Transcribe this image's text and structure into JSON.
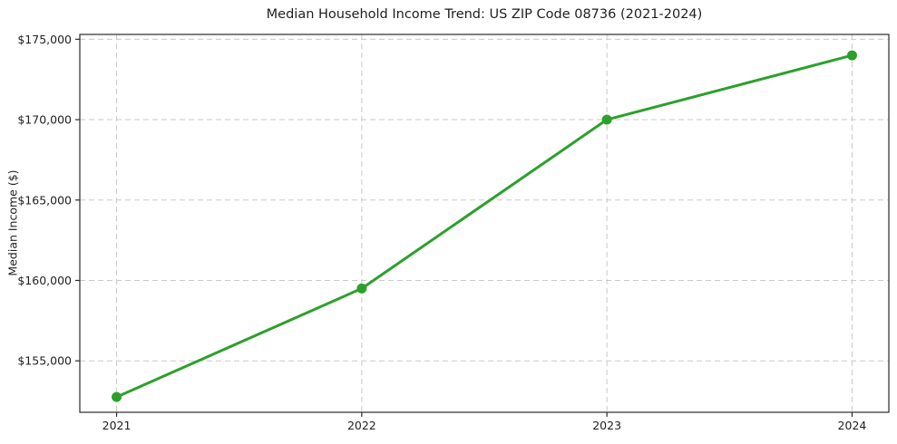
{
  "chart_data": {
    "type": "line",
    "title": "Median Household Income Trend: US ZIP Code 08736 (2021-2024)",
    "xlabel": "",
    "ylabel": "Median Income ($)",
    "x": [
      2021,
      2022,
      2023,
      2024
    ],
    "x_tick_labels": [
      "2021",
      "2022",
      "2023",
      "2024"
    ],
    "series": [
      {
        "name": "median-household-income",
        "values": [
          152750,
          159500,
          170000,
          174000
        ]
      }
    ],
    "y_ticks": [
      155000,
      160000,
      165000,
      170000,
      175000
    ],
    "y_tick_labels": [
      "$155,000",
      "$160,000",
      "$165,000",
      "$170,000",
      "$175,000"
    ],
    "xlim": [
      2020.85,
      2024.15
    ],
    "ylim": [
      151800,
      175300
    ],
    "grid": true,
    "grid_style": "dashed",
    "legend_position": "none",
    "colors": {
      "line": "#2ca02c",
      "marker": "#2ca02c",
      "grid": "#c9c9c9",
      "spine": "#2a2a2a",
      "text": "#1f1f1f",
      "background": "#ffffff"
    }
  }
}
